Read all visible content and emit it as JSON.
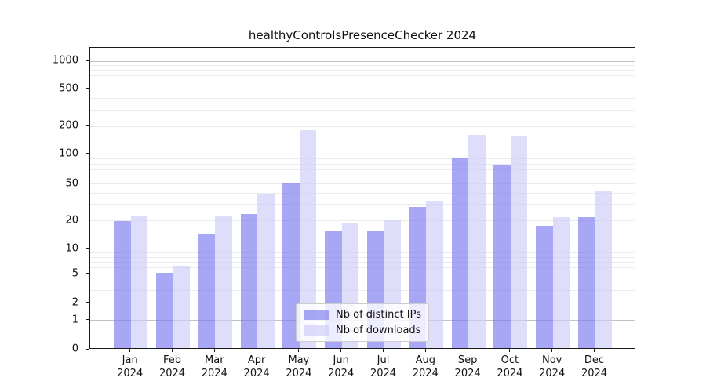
{
  "title": "healthyControlsPresenceChecker 2024",
  "chart_data": {
    "type": "bar",
    "title": "healthyControlsPresenceChecker 2024",
    "categories": [
      "Jan",
      "Feb",
      "Mar",
      "Apr",
      "May",
      "Jun",
      "Jul",
      "Aug",
      "Sep",
      "Oct",
      "Nov",
      "Dec"
    ],
    "category_year": "2024",
    "series": [
      {
        "name": "Nb of distinct IPs",
        "color": "#a7a7f6",
        "values": [
          19,
          5,
          14,
          23,
          50,
          15,
          15,
          27,
          88,
          75,
          17,
          21
        ]
      },
      {
        "name": "Nb of downloads",
        "color": "#dedefa",
        "values": [
          22,
          6,
          22,
          38,
          175,
          18,
          20,
          32,
          155,
          152,
          21,
          40
        ]
      }
    ],
    "yticks": [
      0,
      1,
      2,
      5,
      10,
      20,
      50,
      100,
      200,
      500,
      1000
    ],
    "yscale": "log-like with 0 baseline",
    "ylim": [
      0,
      1400
    ],
    "xlabel": "",
    "ylabel": "",
    "grid": "horizontal, major at 1/10/100/1000, minor at 2-9 per decade",
    "legend_position": "lower center"
  },
  "colors": {
    "bar_ips": "rgba(118,118,241,0.64)",
    "bar_downloads": "rgba(205,205,247,0.65)",
    "grid_major": "#c3c3c3",
    "grid_minor": "#ebebeb",
    "axis": "#1a1a1a",
    "text": "#111111",
    "legend_border": "#cccccc",
    "legend_bg": "rgba(255,255,255,0.8)"
  }
}
